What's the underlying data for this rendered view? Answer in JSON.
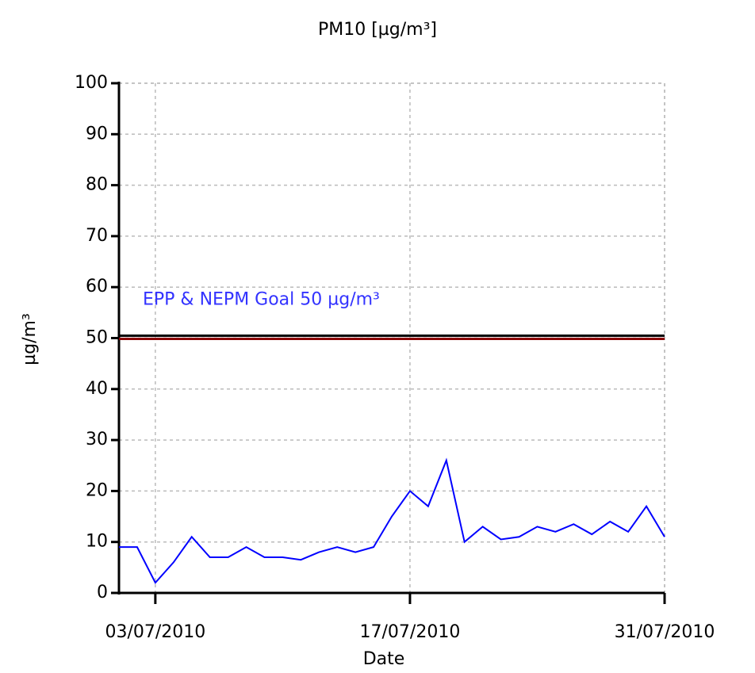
{
  "chart_data": {
    "type": "line",
    "title": "PM10 [µg/m³]",
    "x_label": "Date",
    "y_label": "µg/m³",
    "x": [
      "2010-07-01",
      "2010-07-02",
      "2010-07-03",
      "2010-07-04",
      "2010-07-05",
      "2010-07-06",
      "2010-07-07",
      "2010-07-08",
      "2010-07-09",
      "2010-07-10",
      "2010-07-11",
      "2010-07-12",
      "2010-07-13",
      "2010-07-14",
      "2010-07-15",
      "2010-07-16",
      "2010-07-17",
      "2010-07-18",
      "2010-07-19",
      "2010-07-20",
      "2010-07-21",
      "2010-07-22",
      "2010-07-23",
      "2010-07-24",
      "2010-07-25",
      "2010-07-26",
      "2010-07-27",
      "2010-07-28",
      "2010-07-29",
      "2010-07-30",
      "2010-07-31"
    ],
    "series": [
      {
        "name": "PM10",
        "color": "#0000ff",
        "values": [
          9,
          9,
          2,
          6,
          11,
          7,
          7,
          9,
          7,
          7,
          6.5,
          8,
          9,
          8,
          9,
          15,
          20,
          17,
          26,
          10,
          13,
          10.5,
          11,
          13,
          12,
          13.5,
          11.5,
          14,
          12,
          17,
          11
        ]
      }
    ],
    "goal": {
      "value": 50,
      "label": "EPP & NEPM Goal 50 µg/m³",
      "color": "#8b0000",
      "label_color": "#3333ff"
    },
    "xlim": [
      "2010-07-01",
      "2010-07-31"
    ],
    "xticks": [
      {
        "value": "2010-07-03",
        "label": "03/07/2010"
      },
      {
        "value": "2010-07-17",
        "label": "17/07/2010"
      },
      {
        "value": "2010-07-31",
        "label": "31/07/2010"
      }
    ],
    "ylim": [
      0,
      100
    ],
    "yticks": [
      0,
      10,
      20,
      30,
      40,
      50,
      60,
      70,
      80,
      90,
      100
    ],
    "grid": true
  }
}
